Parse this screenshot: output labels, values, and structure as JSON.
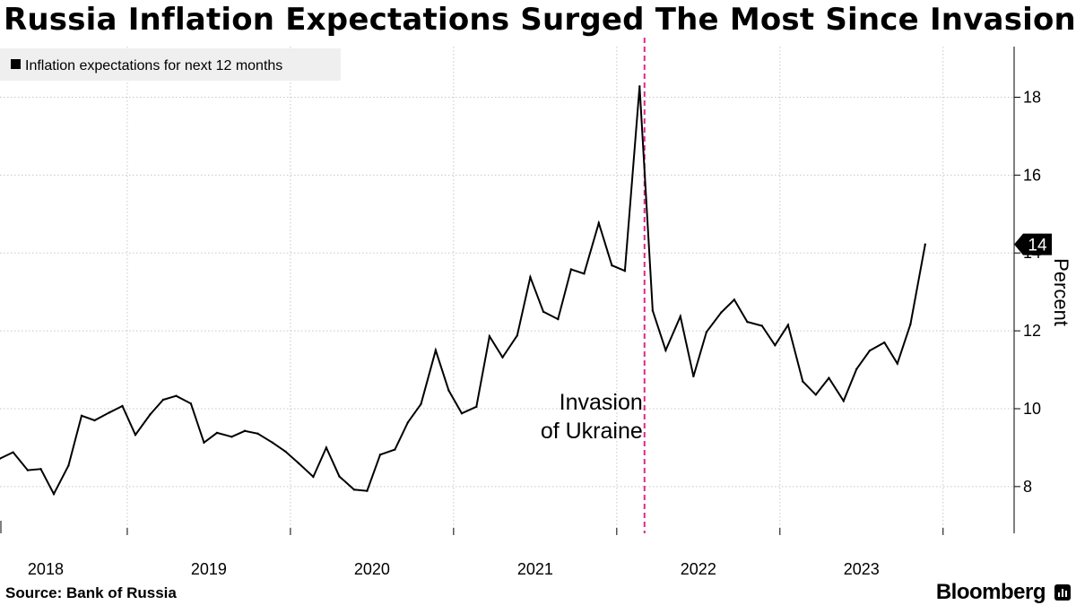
{
  "title": "Russia Inflation Expectations Surged The Most Since Invasion",
  "source": "Source: Bank of Russia",
  "brand": "Bloomberg",
  "chart_data": {
    "type": "line",
    "legend": [
      "Inflation expectations for next 12 months"
    ],
    "legend_position": "top-left",
    "ylabel": "Percent",
    "ylim": [
      6.8,
      19.3
    ],
    "yticks": [
      8,
      10,
      12,
      14,
      16,
      18
    ],
    "xlim": [
      2017.72,
      2023.82
    ],
    "xticks": [
      2018,
      2019,
      2020,
      2021,
      2022,
      2023
    ],
    "year_boundaries": [
      2018.5,
      2019.5,
      2020.5,
      2021.5,
      2022.5,
      2023.5
    ],
    "grid": true,
    "last_value_label": "14",
    "colors": {
      "line": "#000000",
      "annotation": "#e0278a",
      "grid": "#c8c8c8"
    },
    "annotation": {
      "x": 2021.67,
      "lines": [
        "Invasion",
        "of Ukraine"
      ]
    },
    "series": [
      {
        "name": "Inflation expectations for next 12 months",
        "points": [
          [
            2017.72,
            8.72
          ],
          [
            2017.8,
            8.88
          ],
          [
            2017.89,
            8.42
          ],
          [
            2017.97,
            8.45
          ],
          [
            2018.05,
            7.81
          ],
          [
            2018.14,
            8.54
          ],
          [
            2018.22,
            9.82
          ],
          [
            2018.3,
            9.7
          ],
          [
            2018.39,
            9.9
          ],
          [
            2018.47,
            10.07
          ],
          [
            2018.55,
            9.33
          ],
          [
            2018.64,
            9.85
          ],
          [
            2018.72,
            10.23
          ],
          [
            2018.8,
            10.33
          ],
          [
            2018.89,
            10.13
          ],
          [
            2018.97,
            9.13
          ],
          [
            2019.05,
            9.38
          ],
          [
            2019.14,
            9.28
          ],
          [
            2019.22,
            9.43
          ],
          [
            2019.3,
            9.36
          ],
          [
            2019.39,
            9.13
          ],
          [
            2019.47,
            8.9
          ],
          [
            2019.55,
            8.6
          ],
          [
            2019.64,
            8.25
          ],
          [
            2019.72,
            9.0
          ],
          [
            2019.8,
            8.26
          ],
          [
            2019.89,
            7.92
          ],
          [
            2019.97,
            7.89
          ],
          [
            2020.05,
            8.82
          ],
          [
            2020.14,
            8.95
          ],
          [
            2020.22,
            9.65
          ],
          [
            2020.3,
            10.12
          ],
          [
            2020.39,
            11.5
          ],
          [
            2020.47,
            10.47
          ],
          [
            2020.55,
            9.88
          ],
          [
            2020.64,
            10.05
          ],
          [
            2020.72,
            11.86
          ],
          [
            2020.8,
            11.32
          ],
          [
            2020.89,
            11.88
          ],
          [
            2020.97,
            13.38
          ],
          [
            2021.05,
            12.49
          ],
          [
            2021.14,
            12.3
          ],
          [
            2021.22,
            13.58
          ],
          [
            2021.3,
            13.47
          ],
          [
            2021.39,
            14.77
          ],
          [
            2021.47,
            13.68
          ],
          [
            2021.55,
            13.54
          ],
          [
            2021.64,
            18.28
          ],
          [
            2021.72,
            12.52
          ],
          [
            2021.8,
            11.5
          ],
          [
            2021.89,
            12.37
          ],
          [
            2021.97,
            10.83
          ],
          [
            2022.05,
            11.97
          ],
          [
            2022.14,
            12.47
          ],
          [
            2022.22,
            12.8
          ],
          [
            2022.3,
            12.23
          ],
          [
            2022.39,
            12.13
          ],
          [
            2022.47,
            11.63
          ],
          [
            2022.55,
            12.15
          ],
          [
            2022.64,
            10.7
          ],
          [
            2022.72,
            10.36
          ],
          [
            2022.8,
            10.79
          ],
          [
            2022.89,
            10.2
          ],
          [
            2022.97,
            11.02
          ],
          [
            2023.05,
            11.49
          ],
          [
            2023.14,
            11.7
          ],
          [
            2023.22,
            11.16
          ],
          [
            2023.3,
            12.17
          ],
          [
            2023.39,
            14.22
          ]
        ]
      }
    ]
  }
}
